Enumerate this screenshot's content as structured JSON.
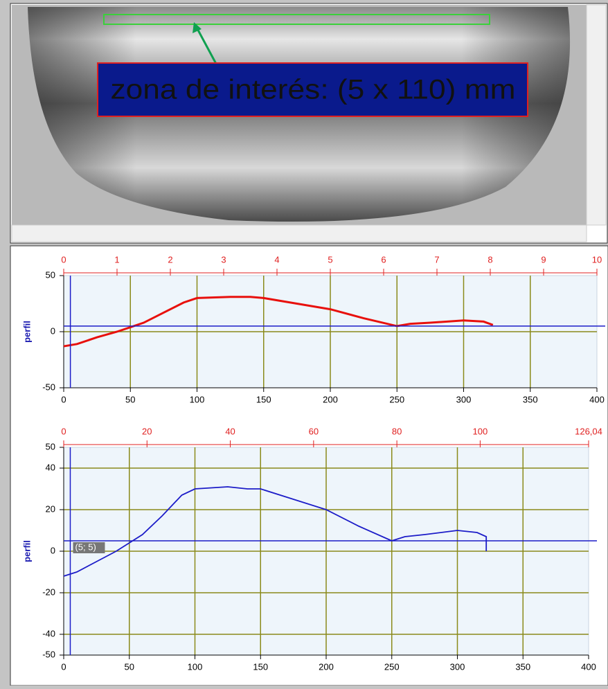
{
  "annotation": "zona de interés: (5 x 110) mm",
  "chart_data": [
    {
      "type": "line",
      "ylabel": "perfil",
      "x": [
        0,
        10,
        25,
        40,
        50,
        60,
        75,
        90,
        100,
        125,
        140,
        150,
        175,
        190,
        200,
        225,
        250,
        260,
        275,
        300,
        315,
        322
      ],
      "series": [
        {
          "color": "#e8100c",
          "values": [
            -13,
            -11,
            -5,
            0,
            4,
            8,
            17,
            26,
            30,
            31,
            31,
            30,
            25,
            22,
            20,
            12,
            5,
            7,
            8,
            10,
            9,
            6
          ]
        }
      ],
      "xlim": [
        0,
        400
      ],
      "xticks": [
        0,
        50,
        100,
        150,
        200,
        250,
        300,
        350,
        400
      ],
      "x2lim": [
        0,
        10
      ],
      "x2ticks": [
        0,
        1,
        2,
        3,
        4,
        5,
        6,
        7,
        8,
        9,
        10
      ],
      "ylim": [
        -50,
        50
      ],
      "yticks": [
        -50,
        0,
        50
      ],
      "grid": true,
      "crosshair": {
        "x": 5,
        "y": 5
      }
    },
    {
      "type": "line",
      "ylabel": "perfil",
      "x": [
        0,
        10,
        25,
        40,
        50,
        60,
        75,
        90,
        100,
        125,
        140,
        150,
        175,
        190,
        200,
        225,
        250,
        260,
        275,
        300,
        315,
        322,
        322
      ],
      "series": [
        {
          "color": "#1c1cc8",
          "values": [
            -12,
            -10,
            -5,
            0,
            4,
            8,
            17,
            27,
            30,
            31,
            30,
            30,
            25,
            22,
            20,
            12,
            5,
            7,
            8,
            10,
            9,
            7,
            0
          ]
        }
      ],
      "xlim": [
        0,
        400
      ],
      "xticks": [
        0,
        50,
        100,
        150,
        200,
        250,
        300,
        350,
        400
      ],
      "x2lim": [
        0,
        126.04
      ],
      "x2ticks": [
        0,
        20,
        40,
        60,
        80,
        100,
        {
          "value": 126.04,
          "label": "126,04"
        }
      ],
      "ylim": [
        -50,
        50
      ],
      "yticks": [
        -50,
        -40,
        -20,
        0,
        20,
        40,
        50
      ],
      "grid": true,
      "crosshair": {
        "x": 5,
        "y": 5
      },
      "crosshair_label": "(5; 5)"
    }
  ]
}
